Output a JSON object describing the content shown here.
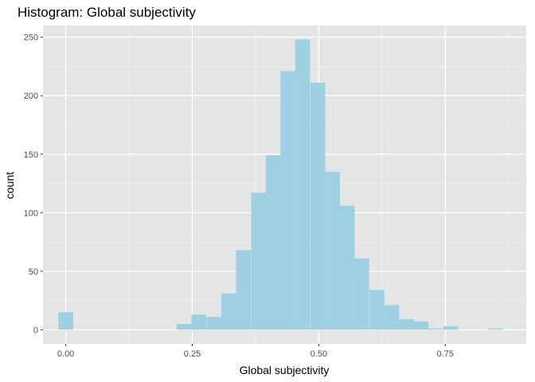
{
  "chart_data": {
    "type": "bar",
    "title": "Histogram: Global subjectivity",
    "xlabel": "Global subjectivity",
    "ylabel": "count",
    "xlim": [
      -0.045,
      0.91
    ],
    "ylim": [
      -12,
      260
    ],
    "x_ticks": [
      0.0,
      0.25,
      0.5,
      0.75
    ],
    "x_tick_labels": [
      "0.00",
      "0.25",
      "0.50",
      "0.75"
    ],
    "y_ticks": [
      0,
      50,
      100,
      150,
      200,
      250
    ],
    "y_tick_labels": [
      "0",
      "50",
      "100",
      "150",
      "200",
      "250"
    ],
    "grid": true,
    "bar_color": "#9fd0e1",
    "panel_background": "#e5e5e5",
    "bins": [
      {
        "x": 0.0,
        "count": 15
      },
      {
        "x": 0.029,
        "count": 0
      },
      {
        "x": 0.058,
        "count": 0
      },
      {
        "x": 0.088,
        "count": 0
      },
      {
        "x": 0.117,
        "count": 0
      },
      {
        "x": 0.146,
        "count": 0
      },
      {
        "x": 0.176,
        "count": 0
      },
      {
        "x": 0.205,
        "count": 0
      },
      {
        "x": 0.234,
        "count": 5
      },
      {
        "x": 0.263,
        "count": 13
      },
      {
        "x": 0.293,
        "count": 11
      },
      {
        "x": 0.322,
        "count": 31
      },
      {
        "x": 0.351,
        "count": 68
      },
      {
        "x": 0.381,
        "count": 117
      },
      {
        "x": 0.41,
        "count": 149
      },
      {
        "x": 0.439,
        "count": 221
      },
      {
        "x": 0.468,
        "count": 248
      },
      {
        "x": 0.498,
        "count": 211
      },
      {
        "x": 0.527,
        "count": 135
      },
      {
        "x": 0.556,
        "count": 106
      },
      {
        "x": 0.585,
        "count": 61
      },
      {
        "x": 0.615,
        "count": 34
      },
      {
        "x": 0.644,
        "count": 21
      },
      {
        "x": 0.673,
        "count": 9
      },
      {
        "x": 0.702,
        "count": 7
      },
      {
        "x": 0.732,
        "count": 1
      },
      {
        "x": 0.761,
        "count": 3
      },
      {
        "x": 0.79,
        "count": 0
      },
      {
        "x": 0.82,
        "count": 0
      },
      {
        "x": 0.849,
        "count": 1
      }
    ],
    "bin_width": 0.0293
  }
}
